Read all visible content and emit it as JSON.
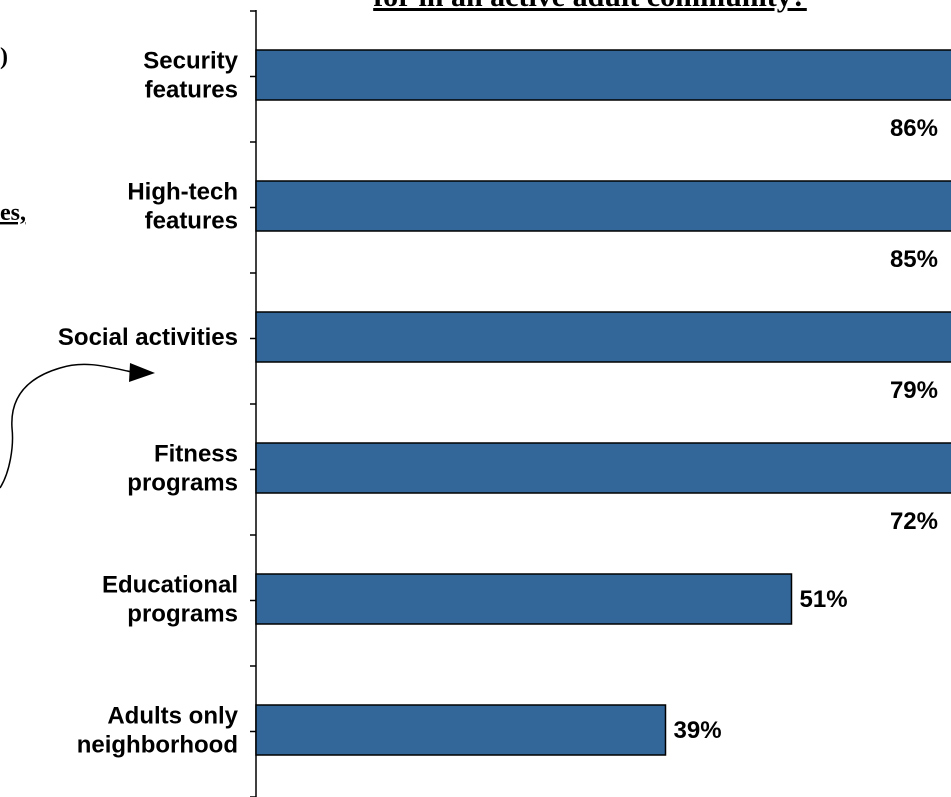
{
  "chart_data": {
    "type": "bar",
    "orientation": "horizontal",
    "title": "for in an active adult community?",
    "categories": [
      [
        "Security",
        "features"
      ],
      [
        "High-tech",
        "features"
      ],
      [
        "Social activities"
      ],
      [
        "Fitness",
        "programs"
      ],
      [
        "Educational",
        "programs"
      ],
      [
        "Adults only",
        "neighborhood"
      ]
    ],
    "values": [
      86,
      85,
      79,
      72,
      51,
      39
    ],
    "value_labels": [
      "86%",
      "85%",
      "79%",
      "72%",
      "51%",
      "39%"
    ],
    "xlim": [
      0,
      100
    ],
    "grid": false,
    "legend": "none",
    "colors": {
      "bar": "#336699",
      "bar_outline": "#000000",
      "axis": "#000000",
      "text": "#000000"
    }
  },
  "side_text": [
    ")",
    "es,"
  ]
}
